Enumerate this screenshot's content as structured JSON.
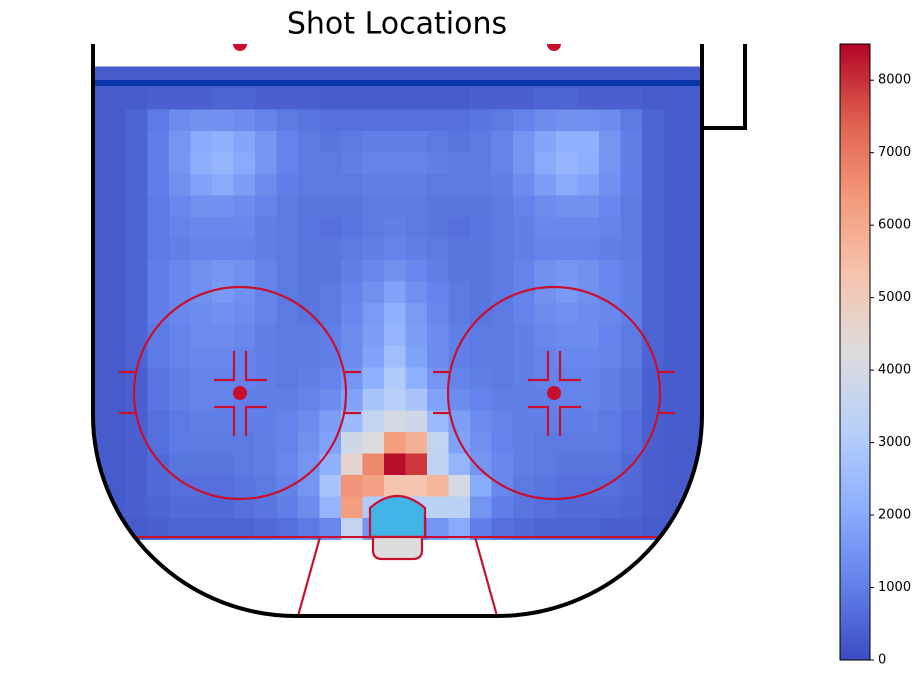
{
  "chart_data": {
    "type": "heatmap",
    "title": "Shot Locations",
    "values": [
      [
        300,
        300,
        300,
        300,
        300,
        300,
        300,
        300,
        300,
        300,
        300,
        300,
        300,
        300,
        300,
        300,
        300,
        300,
        300,
        300,
        300,
        300,
        300,
        300,
        300,
        300,
        300,
        300,
        300
      ],
      [
        300,
        300,
        300,
        400,
        400,
        400,
        500,
        500,
        400,
        400,
        400,
        300,
        300,
        300,
        300,
        300,
        300,
        300,
        400,
        400,
        400,
        500,
        500,
        400,
        400,
        400,
        300,
        300,
        300
      ],
      [
        300,
        300,
        500,
        900,
        1300,
        1400,
        1400,
        1300,
        1100,
        900,
        800,
        700,
        700,
        700,
        700,
        700,
        700,
        700,
        800,
        900,
        1100,
        1300,
        1400,
        1400,
        1300,
        900,
        500,
        300,
        300
      ],
      [
        300,
        300,
        500,
        1000,
        1500,
        2000,
        2200,
        1900,
        1500,
        1100,
        900,
        800,
        900,
        1000,
        1000,
        1000,
        900,
        800,
        900,
        1100,
        1500,
        1900,
        2200,
        2200,
        1500,
        1000,
        500,
        300,
        300
      ],
      [
        300,
        300,
        500,
        1000,
        1500,
        2100,
        2300,
        2000,
        1500,
        1100,
        900,
        900,
        1000,
        1100,
        1100,
        1100,
        1000,
        900,
        900,
        1100,
        1500,
        2000,
        2300,
        2100,
        1500,
        1000,
        500,
        300,
        300
      ],
      [
        300,
        300,
        500,
        1000,
        1400,
        1800,
        2000,
        1700,
        1300,
        1000,
        900,
        900,
        900,
        1000,
        1000,
        1000,
        900,
        900,
        900,
        1000,
        1300,
        1700,
        2000,
        1800,
        1400,
        1000,
        500,
        300,
        300
      ],
      [
        300,
        300,
        500,
        900,
        1200,
        1400,
        1400,
        1300,
        1100,
        900,
        800,
        800,
        800,
        900,
        900,
        900,
        800,
        800,
        800,
        900,
        1100,
        1300,
        1400,
        1400,
        1200,
        900,
        500,
        300,
        300
      ],
      [
        300,
        300,
        500,
        900,
        1100,
        1200,
        1200,
        1200,
        1000,
        900,
        800,
        700,
        800,
        900,
        1000,
        900,
        800,
        700,
        800,
        900,
        1000,
        1200,
        1200,
        1200,
        1100,
        900,
        500,
        300,
        300
      ],
      [
        300,
        300,
        500,
        900,
        1000,
        1100,
        1100,
        1100,
        1000,
        900,
        800,
        800,
        900,
        1000,
        1100,
        1000,
        900,
        800,
        800,
        900,
        1000,
        1100,
        1100,
        1100,
        1000,
        900,
        500,
        300,
        300
      ],
      [
        300,
        300,
        500,
        1000,
        1200,
        1400,
        1500,
        1400,
        1100,
        900,
        800,
        800,
        1000,
        1200,
        1400,
        1200,
        1000,
        800,
        800,
        900,
        1100,
        1400,
        1500,
        1400,
        1200,
        1000,
        500,
        300,
        300
      ],
      [
        300,
        300,
        500,
        1000,
        1200,
        1400,
        1600,
        1400,
        1100,
        900,
        800,
        900,
        1100,
        1400,
        1800,
        1400,
        1100,
        900,
        800,
        900,
        1100,
        1400,
        1600,
        1400,
        1200,
        1000,
        500,
        300,
        300
      ],
      [
        300,
        300,
        500,
        1000,
        1200,
        1300,
        1400,
        1300,
        1100,
        900,
        800,
        900,
        1200,
        1600,
        2200,
        1600,
        1200,
        900,
        800,
        900,
        1100,
        1300,
        1400,
        1300,
        1200,
        1000,
        500,
        300,
        300
      ],
      [
        300,
        300,
        500,
        900,
        1100,
        1300,
        1300,
        1200,
        1000,
        900,
        900,
        1000,
        1300,
        1700,
        2300,
        1700,
        1300,
        1000,
        900,
        900,
        1000,
        1200,
        1300,
        1300,
        1100,
        900,
        500,
        300,
        300
      ],
      [
        300,
        300,
        500,
        900,
        1100,
        1200,
        1200,
        1100,
        1000,
        900,
        900,
        1000,
        1300,
        1800,
        2600,
        1800,
        1300,
        1000,
        900,
        900,
        1000,
        1100,
        1200,
        1200,
        1100,
        900,
        500,
        300,
        300
      ],
      [
        300,
        300,
        400,
        800,
        1000,
        1100,
        1100,
        1100,
        1000,
        900,
        1000,
        1100,
        1500,
        2200,
        3000,
        2200,
        1500,
        1100,
        1000,
        900,
        1000,
        1100,
        1100,
        1100,
        1000,
        800,
        400,
        300,
        300
      ],
      [
        300,
        300,
        400,
        800,
        1000,
        1100,
        1100,
        1000,
        1000,
        1000,
        1100,
        1300,
        1800,
        2800,
        3200,
        2800,
        1800,
        1300,
        1100,
        1000,
        1000,
        1000,
        1100,
        1100,
        1000,
        800,
        400,
        300,
        300
      ],
      [
        300,
        300,
        400,
        700,
        900,
        1000,
        1000,
        1000,
        1000,
        1100,
        1300,
        1700,
        2500,
        3500,
        4000,
        3800,
        2500,
        1700,
        1300,
        1100,
        1000,
        1000,
        1000,
        1000,
        900,
        700,
        400,
        300,
        300
      ],
      [
        300,
        300,
        400,
        700,
        900,
        900,
        900,
        900,
        1000,
        1100,
        1400,
        1800,
        3800,
        4200,
        6300,
        5800,
        3500,
        1800,
        1400,
        1100,
        1000,
        900,
        900,
        900,
        900,
        700,
        400,
        300,
        300
      ],
      [
        300,
        300,
        400,
        600,
        800,
        800,
        800,
        900,
        1000,
        1200,
        1500,
        2200,
        4600,
        6700,
        8400,
        7900,
        3400,
        2300,
        1500,
        1200,
        1000,
        900,
        800,
        800,
        800,
        600,
        400,
        300,
        300
      ],
      [
        300,
        300,
        400,
        600,
        700,
        700,
        700,
        800,
        900,
        1100,
        1500,
        2800,
        6500,
        6200,
        5300,
        5300,
        5700,
        4000,
        2000,
        1200,
        900,
        800,
        700,
        700,
        700,
        600,
        400,
        300,
        300
      ],
      [
        300,
        300,
        400,
        500,
        600,
        600,
        600,
        700,
        800,
        1000,
        1300,
        2300,
        6300,
        3000,
        3200,
        3200,
        3300,
        3300,
        1500,
        1000,
        800,
        700,
        600,
        600,
        600,
        500,
        400,
        300,
        300
      ],
      [
        300,
        300,
        300,
        400,
        500,
        500,
        500,
        500,
        600,
        700,
        900,
        1200,
        3500,
        1500,
        1000,
        1000,
        1500,
        2000,
        1000,
        700,
        600,
        500,
        500,
        500,
        400,
        400,
        300,
        300,
        300
      ]
    ],
    "clim": [
      0,
      8500
    ],
    "cticks": [
      0,
      1000,
      2000,
      3000,
      4000,
      5000,
      6000,
      7000,
      8000
    ]
  }
}
